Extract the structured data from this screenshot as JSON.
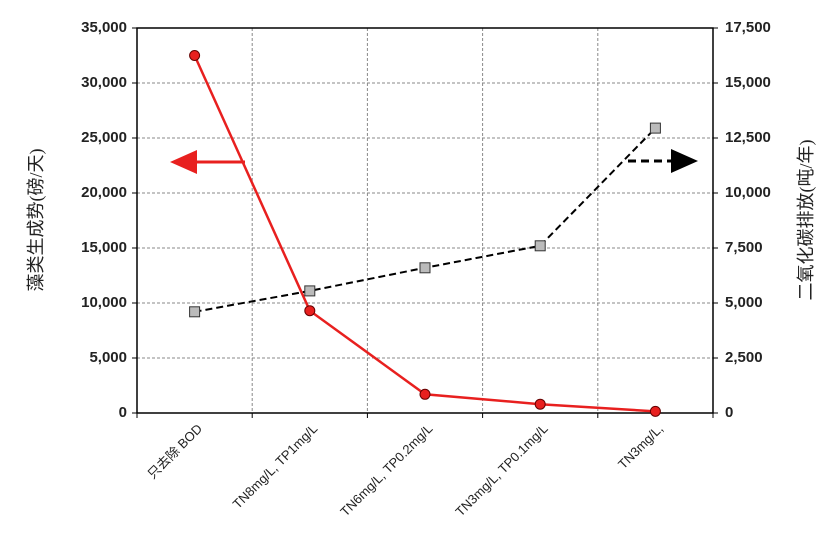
{
  "chart_data": {
    "type": "line",
    "y_label": "藻类生成势(磅/天)",
    "y2_label": "二氧化碳排放(吨/年)",
    "categories": [
      "只去除 BOD",
      "TN8mg/L, TP1mg/L",
      "TN6mg/L, TP0.2mg/L",
      "TN3mg/L, TP0.1mg/L",
      "TN3mg/L,"
    ],
    "series": [
      {
        "color": "#e8201f",
        "marker": "circle",
        "dashed": false,
        "values": [
          32500,
          9300,
          1700,
          800,
          150
        ]
      },
      {
        "color": "#000000",
        "marker": "square",
        "dashed": true,
        "axis": "y2",
        "values": [
          4600,
          5550,
          6600,
          7600,
          12950
        ]
      }
    ],
    "ylim": [
      0,
      35000
    ],
    "yticks": [
      0,
      {
        "value": 5000,
        "label": "5,000"
      },
      {
        "value": 10000,
        "label": "10,000"
      },
      {
        "value": 15000,
        "label": "15,000"
      },
      {
        "value": 20000,
        "label": "20,000"
      },
      {
        "value": 25000,
        "label": "25,000"
      },
      {
        "value": 30000,
        "label": "30,000"
      },
      {
        "value": 35000,
        "label": "35,000"
      }
    ],
    "y2lim": [
      0,
      17500
    ],
    "y2ticks": [
      0,
      {
        "value": 2500,
        "label": "2,500"
      },
      {
        "value": 5000,
        "label": "5,000"
      },
      {
        "value": 7500,
        "label": "7,500"
      },
      {
        "value": 10000,
        "label": "10,000"
      },
      {
        "value": 12500,
        "label": "12,500"
      },
      {
        "value": 15000,
        "label": "15,000"
      },
      {
        "value": 17500,
        "label": "17,500"
      }
    ],
    "grid": true
  }
}
